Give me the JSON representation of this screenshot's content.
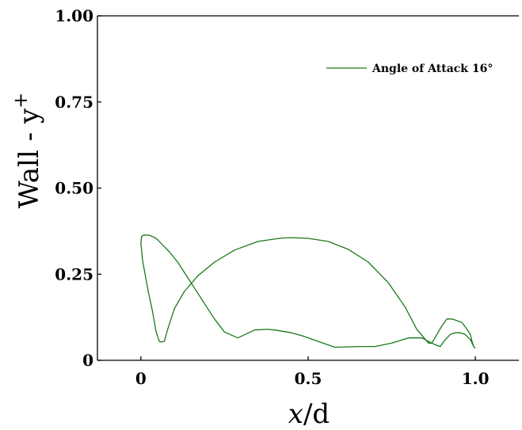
{
  "chart_data": {
    "type": "line",
    "title": "",
    "xlabel": "x/d",
    "ylabel": "Wall - y+",
    "xlabel_parts": {
      "var": "x",
      "rest": "/d"
    },
    "ylabel_parts": {
      "base": "Wall - y",
      "sup": "+"
    },
    "xlim": [
      -0.13,
      1.13
    ],
    "ylim": [
      0,
      1.0
    ],
    "xticks": [
      {
        "value": 0,
        "label": "0"
      },
      {
        "value": 0.5,
        "label": "0.5"
      },
      {
        "value": 1.0,
        "label": "1.0"
      }
    ],
    "yticks": [
      {
        "value": 0,
        "label": "0"
      },
      {
        "value": 0.25,
        "label": "0.25"
      },
      {
        "value": 0.5,
        "label": "0.50"
      },
      {
        "value": 0.75,
        "label": "0.75"
      },
      {
        "value": 1.0,
        "label": "1.00"
      }
    ],
    "grid": false,
    "legend_position": "top-right",
    "series": [
      {
        "name": "Angle of Attack 16°",
        "color": "#1a7a1a",
        "x": [
          1.0,
          0.995,
          0.985,
          0.97,
          0.955,
          0.94,
          0.925,
          0.91,
          0.895,
          0.88,
          0.86,
          0.84,
          0.8,
          0.75,
          0.7,
          0.65,
          0.58,
          0.53,
          0.48,
          0.45,
          0.4,
          0.38,
          0.34,
          0.29,
          0.25,
          0.22,
          0.2,
          0.17,
          0.14,
          0.11,
          0.085,
          0.07,
          0.065,
          0.055,
          0.05,
          0.04,
          0.025,
          0.01,
          0.002,
          0.0,
          0.005,
          0.02,
          0.035,
          0.045,
          0.055,
          0.06,
          0.07,
          0.08,
          0.1,
          0.13,
          0.17,
          0.22,
          0.28,
          0.35,
          0.42,
          0.45,
          0.5,
          0.56,
          0.62,
          0.68,
          0.74,
          0.79,
          0.825,
          0.86,
          0.87,
          0.9,
          0.915,
          0.93,
          0.96,
          0.975,
          0.985,
          0.99,
          0.995,
          1.0
        ],
        "values": [
          0.035,
          0.04,
          0.06,
          0.075,
          0.08,
          0.08,
          0.075,
          0.06,
          0.04,
          0.045,
          0.055,
          0.065,
          0.065,
          0.05,
          0.04,
          0.04,
          0.038,
          0.055,
          0.072,
          0.08,
          0.088,
          0.09,
          0.088,
          0.065,
          0.082,
          0.12,
          0.15,
          0.195,
          0.24,
          0.285,
          0.315,
          0.33,
          0.335,
          0.345,
          0.35,
          0.357,
          0.363,
          0.364,
          0.36,
          0.34,
          0.29,
          0.21,
          0.14,
          0.085,
          0.055,
          0.053,
          0.055,
          0.09,
          0.15,
          0.2,
          0.245,
          0.285,
          0.32,
          0.345,
          0.355,
          0.356,
          0.354,
          0.345,
          0.322,
          0.285,
          0.225,
          0.155,
          0.09,
          0.05,
          0.05,
          0.1,
          0.12,
          0.12,
          0.11,
          0.09,
          0.075,
          0.055,
          0.04,
          0.035
        ]
      }
    ]
  }
}
